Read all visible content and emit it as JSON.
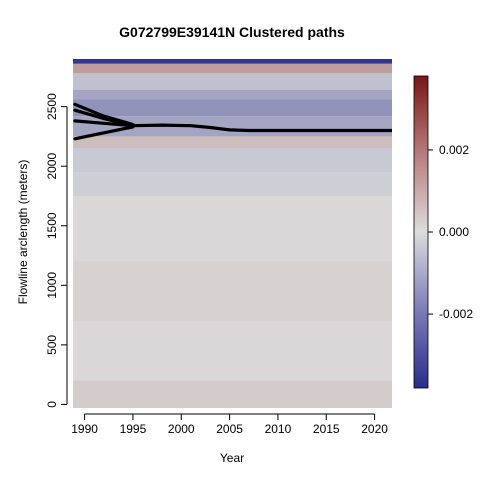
{
  "chart_data": {
    "type": "heatmap",
    "title": "G072799E39141N Clustered paths",
    "xlabel": "Year",
    "ylabel": "Flowline arclength (meters)",
    "xlim": [
      1988.8,
      2021.8
    ],
    "ylim": [
      -30,
      2900
    ],
    "x_ticks": [
      1990,
      1995,
      2000,
      2005,
      2010,
      2015,
      2020
    ],
    "x_tick_labels": [
      "1990",
      "1995",
      "2000",
      "2005",
      "2010",
      "2015",
      "2020"
    ],
    "y_ticks": [
      0,
      500,
      1000,
      1500,
      2000,
      2500
    ],
    "y_tick_labels": [
      "0",
      "500",
      "1000",
      "1500",
      "2000",
      "2500"
    ],
    "colorbar": {
      "min": -0.0038,
      "max": 0.0038,
      "ticks": [
        0.002,
        0.0,
        -0.002
      ],
      "tick_labels": [
        "0.002",
        "0.000",
        "-0.002"
      ],
      "colors": {
        "low": "#2b2c8c",
        "mid": "#dcdcdc",
        "high": "#7a1515"
      }
    },
    "heatmap_bands": [
      {
        "y0": 2860,
        "y1": 2900,
        "value": -0.0036
      },
      {
        "y0": 2780,
        "y1": 2860,
        "value": 0.0012
      },
      {
        "y0": 2640,
        "y1": 2780,
        "value": -0.0006
      },
      {
        "y0": 2560,
        "y1": 2640,
        "value": -0.0012
      },
      {
        "y0": 2420,
        "y1": 2560,
        "value": -0.0016
      },
      {
        "y0": 2250,
        "y1": 2420,
        "value": -0.0012
      },
      {
        "y0": 2150,
        "y1": 2250,
        "value": 0.0006
      },
      {
        "y0": 1950,
        "y1": 2150,
        "value": -0.0004
      },
      {
        "y0": 1750,
        "y1": 1950,
        "value": -0.0003
      },
      {
        "y0": 1200,
        "y1": 1750,
        "value": 0.0001
      },
      {
        "y0": 700,
        "y1": 1200,
        "value": 0.0002
      },
      {
        "y0": 200,
        "y1": 700,
        "value": 0.0001
      },
      {
        "y0": -30,
        "y1": 200,
        "value": 0.0003
      }
    ],
    "series": [
      {
        "x": [
          1989,
          1992,
          1995
        ],
        "y": [
          2520,
          2420,
          2350
        ]
      },
      {
        "x": [
          1989,
          1992,
          1995
        ],
        "y": [
          2470,
          2400,
          2340
        ]
      },
      {
        "x": [
          1989,
          1992,
          1995
        ],
        "y": [
          2380,
          2360,
          2340
        ]
      },
      {
        "x": [
          1989,
          1992,
          1995
        ],
        "y": [
          2230,
          2280,
          2330
        ]
      },
      {
        "x": [
          1995,
          1998,
          2001,
          2003,
          2005,
          2007,
          2010,
          2015,
          2021.8
        ],
        "y": [
          2340,
          2345,
          2340,
          2325,
          2305,
          2300,
          2300,
          2300,
          2300
        ]
      }
    ]
  }
}
